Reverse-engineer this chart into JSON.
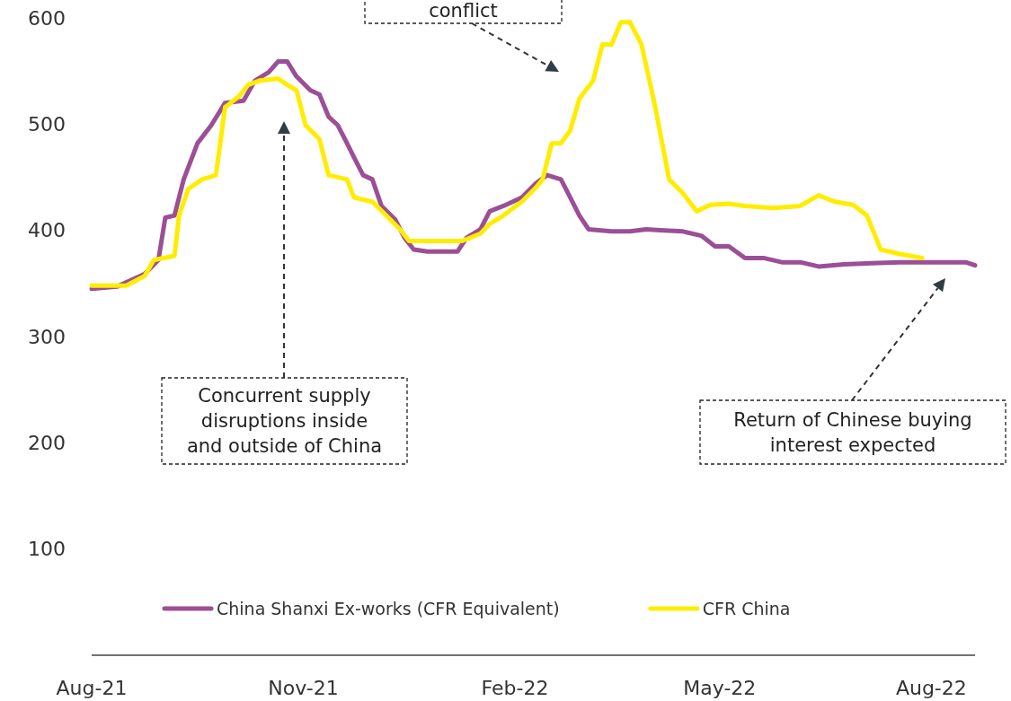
{
  "chart_data": {
    "type": "line",
    "ylim": [
      0,
      600
    ],
    "yticks": [
      100,
      200,
      300,
      400,
      500,
      600
    ],
    "xlim": [
      "2021-08-01",
      "2022-08-20"
    ],
    "xticks": [
      {
        "value": "2021-08-01",
        "label": "Aug-21"
      },
      {
        "value": "2021-11-01",
        "label": "Nov-21"
      },
      {
        "value": "2022-02-01",
        "label": "Feb-22"
      },
      {
        "value": "2022-05-01",
        "label": "May-22"
      },
      {
        "value": "2022-08-01",
        "label": "Aug-22"
      }
    ],
    "grid": false,
    "legend": "bottom",
    "marker": "none",
    "line_style": "solid",
    "series": [
      {
        "name": "China Shanxi Ex-works (CFR Equivalent)",
        "color": "#9b4f96",
        "x": [
          "2021-08-01",
          "2021-08-12",
          "2021-08-24",
          "2021-08-30",
          "2021-09-02",
          "2021-09-06",
          "2021-09-10",
          "2021-09-16",
          "2021-09-22",
          "2021-09-28",
          "2021-10-06",
          "2021-10-11",
          "2021-10-17",
          "2021-10-21",
          "2021-10-25",
          "2021-10-29",
          "2021-11-04",
          "2021-11-08",
          "2021-11-12",
          "2021-11-16",
          "2021-11-20",
          "2021-11-23",
          "2021-11-27",
          "2021-12-01",
          "2021-12-05",
          "2021-12-11",
          "2021-12-15",
          "2021-12-19",
          "2021-12-25",
          "2022-01-07",
          "2022-01-11",
          "2022-01-17",
          "2022-01-21",
          "2022-01-27",
          "2022-02-04",
          "2022-02-10",
          "2022-02-15",
          "2022-02-21",
          "2022-02-25",
          "2022-03-01",
          "2022-03-05",
          "2022-03-15",
          "2022-03-23",
          "2022-03-30",
          "2022-04-07",
          "2022-04-15",
          "2022-04-23",
          "2022-04-29",
          "2022-05-05",
          "2022-05-12",
          "2022-05-20",
          "2022-05-28",
          "2022-06-05",
          "2022-06-13",
          "2022-06-24",
          "2022-07-06",
          "2022-07-18",
          "2022-08-02",
          "2022-08-16",
          "2022-08-20"
        ],
        "values": [
          345,
          347,
          359,
          372,
          412,
          414,
          448,
          482,
          499,
          520,
          522,
          541,
          549,
          559,
          559,
          545,
          532,
          528,
          507,
          499,
          482,
          469,
          452,
          448,
          423,
          410,
          393,
          382,
          380,
          380,
          393,
          401,
          418,
          423,
          431,
          444,
          452,
          448,
          431,
          414,
          401,
          399,
          399,
          401,
          400,
          399,
          395,
          385,
          385,
          374,
          374,
          370,
          370,
          366,
          368,
          369,
          370,
          370,
          370,
          367
        ]
      },
      {
        "name": "CFR China",
        "color": "#ffed00",
        "x": [
          "2021-08-01",
          "2021-08-16",
          "2021-08-24",
          "2021-08-28",
          "2021-09-06",
          "2021-09-08",
          "2021-09-12",
          "2021-09-18",
          "2021-09-24",
          "2021-09-28",
          "2021-10-04",
          "2021-10-08",
          "2021-10-13",
          "2021-10-21",
          "2021-10-25",
          "2021-10-29",
          "2021-11-02",
          "2021-11-08",
          "2021-11-12",
          "2021-11-20",
          "2021-11-23",
          "2021-12-01",
          "2021-12-07",
          "2021-12-13",
          "2021-12-17",
          "2021-12-25",
          "2022-01-09",
          "2022-01-17",
          "2022-01-21",
          "2022-01-27",
          "2022-02-04",
          "2022-02-10",
          "2022-02-13",
          "2022-02-17",
          "2022-02-21",
          "2022-02-25",
          "2022-03-01",
          "2022-03-07",
          "2022-03-11",
          "2022-03-15",
          "2022-03-19",
          "2022-03-23",
          "2022-03-28",
          "2022-04-03",
          "2022-04-09",
          "2022-04-15",
          "2022-04-21",
          "2022-04-27",
          "2022-05-05",
          "2022-05-12",
          "2022-05-24",
          "2022-06-05",
          "2022-06-13",
          "2022-06-20",
          "2022-06-28",
          "2022-07-04",
          "2022-07-10",
          "2022-07-18",
          "2022-07-28"
        ],
        "values": [
          348,
          348,
          357,
          372,
          376,
          414,
          439,
          448,
          452,
          516,
          526,
          537,
          541,
          543,
          537,
          532,
          499,
          486,
          452,
          448,
          431,
          427,
          414,
          401,
          390,
          390,
          390,
          397,
          406,
          414,
          427,
          440,
          448,
          482,
          482,
          494,
          524,
          541,
          575,
          575,
          596,
          596,
          575,
          516,
          448,
          435,
          418,
          424,
          425,
          423,
          421,
          423,
          433,
          427,
          424,
          414,
          382,
          378,
          374
        ]
      }
    ],
    "annotations": [
      "conflict",
      "Concurrent supply\ndisruptions inside\nand outside of China",
      "Return of Chinese buying\ninterest expected"
    ]
  }
}
